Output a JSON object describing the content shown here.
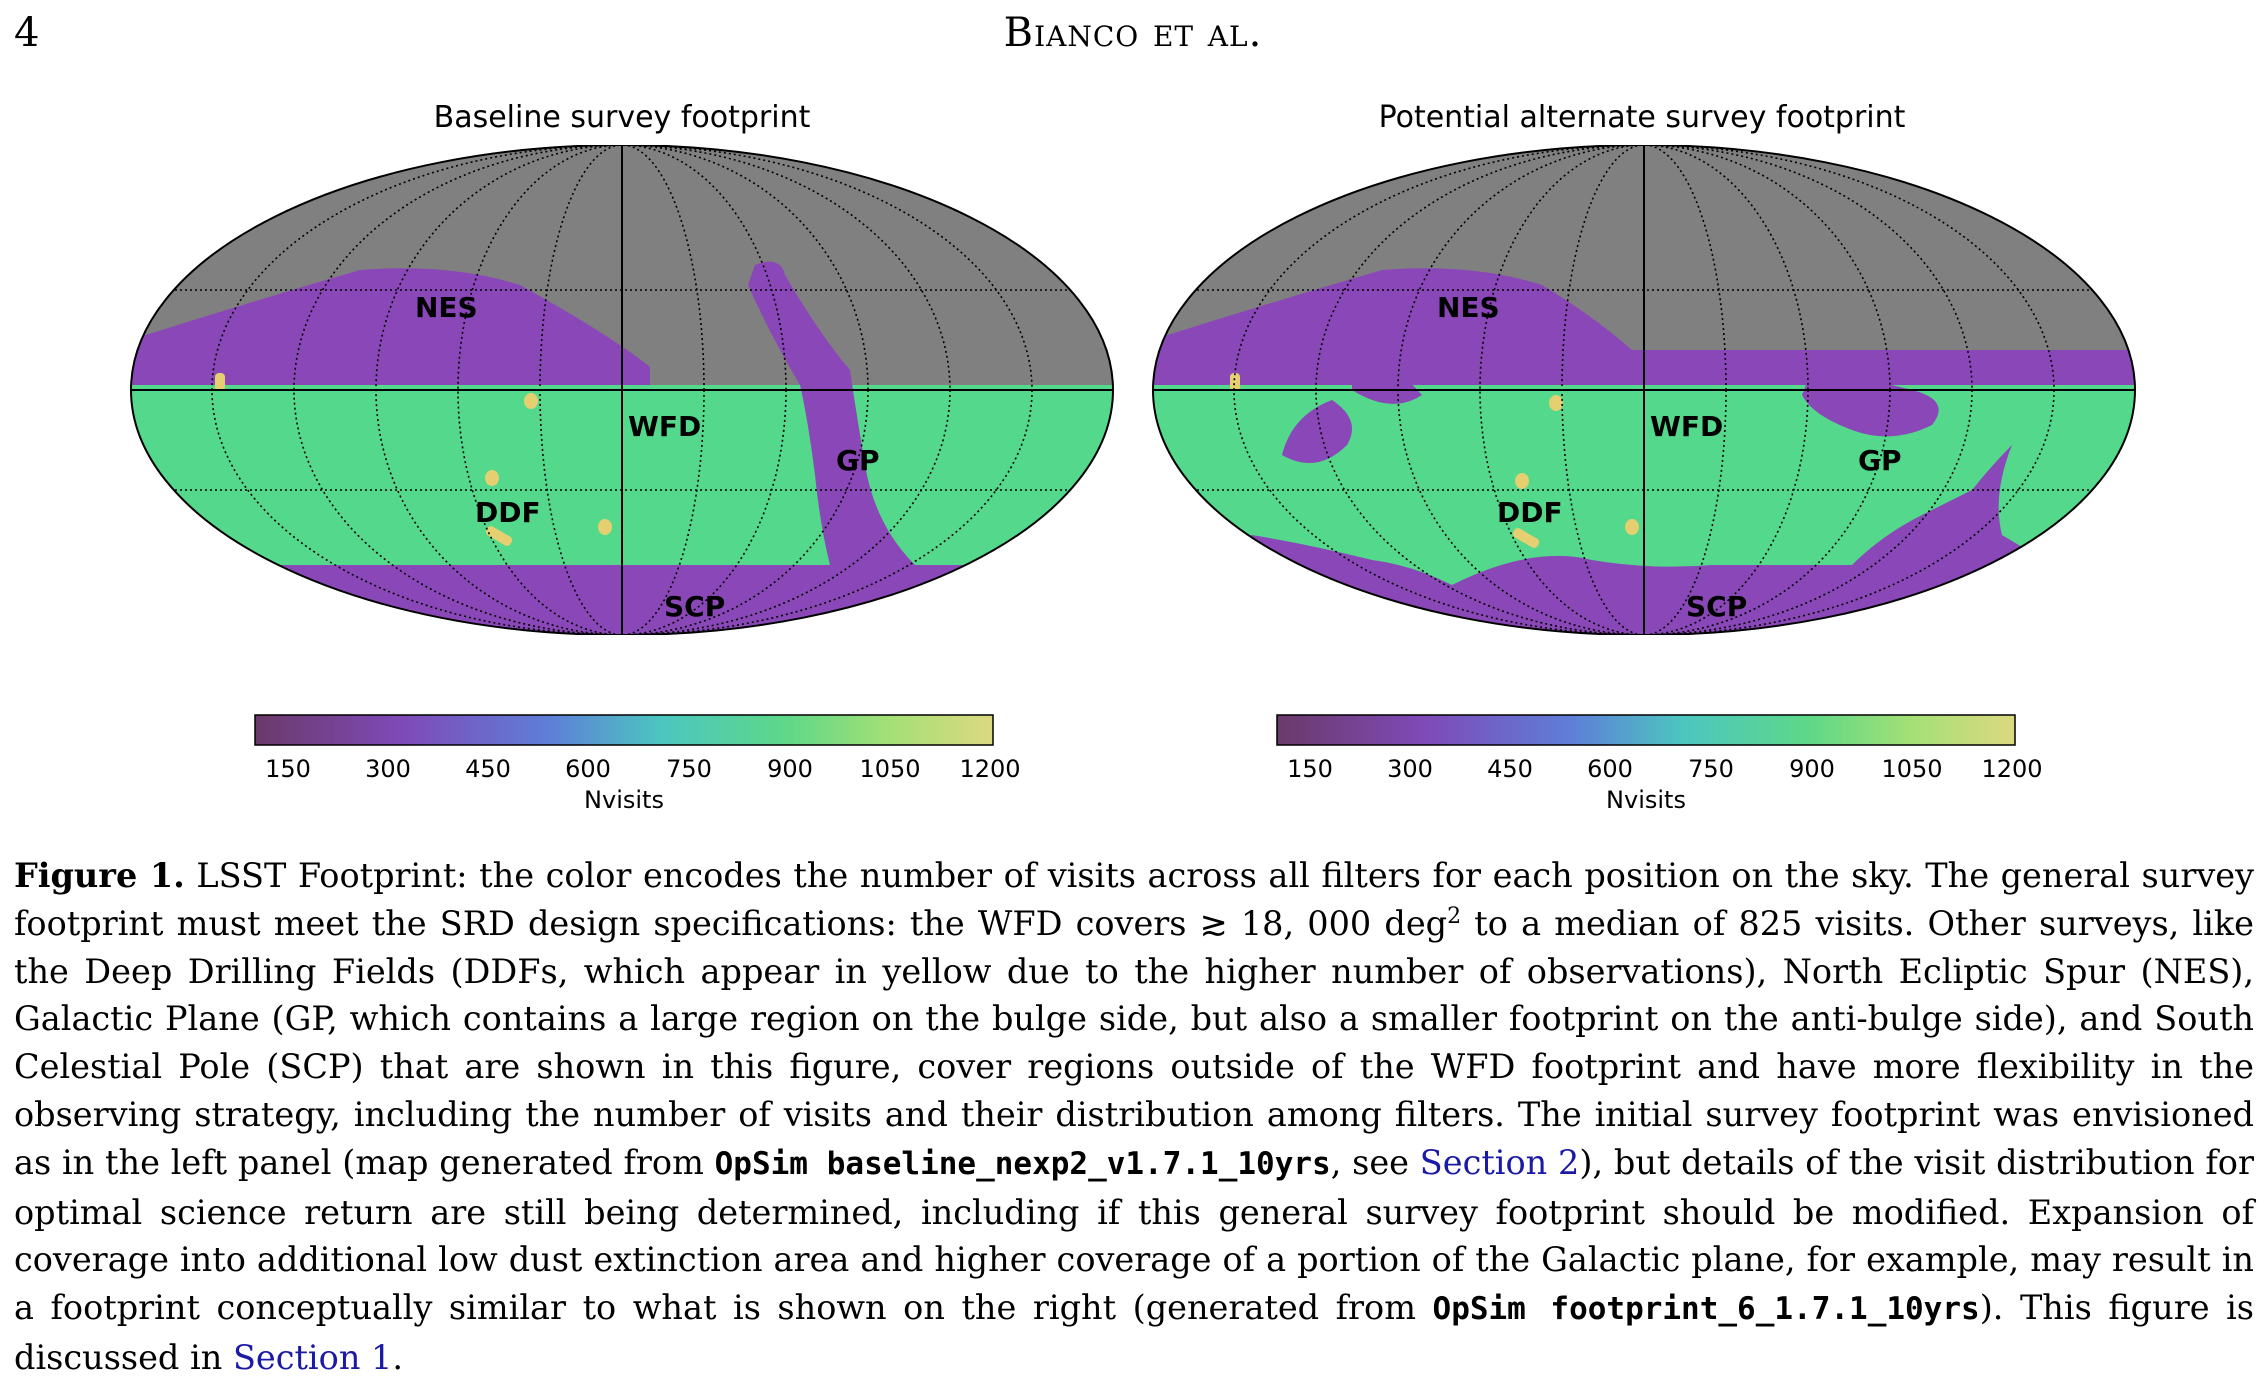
{
  "header": {
    "page_number": "4",
    "running_title": "Bianco et al."
  },
  "colors": {
    "unobserved": "#808080",
    "low_visits": "#8a47b8",
    "wfd": "#54d88c",
    "ddf": "#e6cf70"
  },
  "colormap_stops": [
    "#6a3a6a",
    "#7f4ab8",
    "#5e7fd8",
    "#4cc6c0",
    "#5ed888",
    "#a4e076",
    "#dcd880"
  ],
  "figure": {
    "panels": [
      {
        "id": "baseline",
        "title": "Baseline survey footprint",
        "labels": [
          "NES",
          "WFD",
          "GP",
          "DDF",
          "SCP"
        ],
        "colorbar": {
          "ticks": [
            "150",
            "300",
            "450",
            "600",
            "750",
            "900",
            "1050",
            "1200"
          ],
          "label": "Nvisits"
        }
      },
      {
        "id": "alternate",
        "title": "Potential alternate survey footprint",
        "labels": [
          "NES",
          "WFD",
          "GP",
          "DDF",
          "SCP"
        ],
        "colorbar": {
          "ticks": [
            "150",
            "300",
            "450",
            "600",
            "750",
            "900",
            "1050",
            "1200"
          ],
          "label": "Nvisits"
        }
      }
    ]
  },
  "caption": {
    "label": "Figure 1.",
    "t1": " LSST Footprint: the color encodes the number of visits across all filters for each position on the sky. The general survey footprint must meet the SRD design specifications: the WFD covers ≳ 18, 000 deg",
    "sup": "2",
    "t2": " to a median of 825 visits. Other surveys, like the Deep Drilling Fields (DDFs, which appear in yellow due to the higher number of observations), North Ecliptic Spur (NES), Galactic Plane (GP, which contains a large region on the bulge side, but also a smaller footprint on the anti-bulge side), and South Celestial Pole (SCP) that are shown in this figure, cover regions outside of the WFD footprint and have more flexibility in the observing strategy, including the number of visits and their distribution among filters. The initial survey footprint was envisioned as in the left panel (map generated from ",
    "code1": "OpSim baseline_nexp2_v1.7.1_10yrs",
    "t3": ", see ",
    "link1": "Section 2",
    "t4": "), but details of the visit distribution for optimal science return are still being determined, including if this general survey footprint should be modified. Expansion of coverage into additional low dust extinction area and higher coverage of a portion of the Galactic plane, for example, may result in a footprint conceptually similar to what is shown on the right (generated from ",
    "code2": "OpSim footprint_6_1.7.1_10yrs",
    "t5": "). This figure is discussed in ",
    "link2": "Section 1",
    "t6": "."
  }
}
